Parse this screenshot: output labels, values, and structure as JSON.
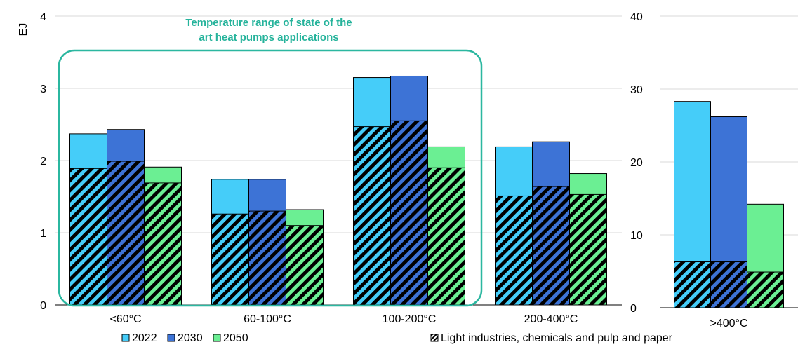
{
  "colors": {
    "y2022": "#45CDF9",
    "y2030": "#3D73D6",
    "y2050": "#6BEF93",
    "highlight_box": "#2BB7A0",
    "highlight_text": "#25B39B",
    "axis": "#000000",
    "grid": "#D9D9D9"
  },
  "chart_data": [
    {
      "type": "bar",
      "ylabel": "EJ",
      "ylim": [
        0,
        4
      ],
      "yticks": [
        "0",
        "1",
        "2",
        "3",
        "4"
      ],
      "grid": true,
      "categories": [
        "<60°C",
        "60-100°C",
        "100-200°C",
        "200-400°C"
      ],
      "series": [
        {
          "name": "2022",
          "values": [
            2.37,
            1.74,
            3.15,
            2.19
          ],
          "light_industries": [
            1.89,
            1.26,
            2.47,
            1.51
          ]
        },
        {
          "name": "2030",
          "values": [
            2.43,
            1.74,
            3.17,
            2.26
          ],
          "light_industries": [
            1.99,
            1.3,
            2.55,
            1.64
          ]
        },
        {
          "name": "2050",
          "values": [
            1.91,
            1.32,
            2.19,
            1.82
          ],
          "light_industries": [
            1.69,
            1.1,
            1.9,
            1.53
          ]
        }
      ],
      "annotation": {
        "text_line1": "Temperature range of state of the",
        "text_line2": "art heat pumps applications",
        "spans_categories": [
          "<60°C",
          "60-100°C",
          "100-200°C"
        ]
      }
    },
    {
      "type": "bar",
      "ylim": [
        0,
        40
      ],
      "yticks": [
        "0",
        "10",
        "20",
        "30",
        "40"
      ],
      "grid": true,
      "categories": [
        ">400°C"
      ],
      "series": [
        {
          "name": "2022",
          "values": [
            28.3
          ],
          "light_industries": [
            6.3
          ]
        },
        {
          "name": "2030",
          "values": [
            26.2
          ],
          "light_industries": [
            6.3
          ]
        },
        {
          "name": "2050",
          "values": [
            14.2
          ],
          "light_industries": [
            4.9
          ]
        }
      ]
    }
  ],
  "legend": {
    "placement": "bottom",
    "items": [
      {
        "label": "2022",
        "color_key": "y2022",
        "pattern": false
      },
      {
        "label": "2030",
        "color_key": "y2030",
        "pattern": false
      },
      {
        "label": "2050",
        "color_key": "y2050",
        "pattern": false
      },
      {
        "label": "Light industries, chemicals and pulp and paper",
        "pattern": true
      }
    ]
  }
}
